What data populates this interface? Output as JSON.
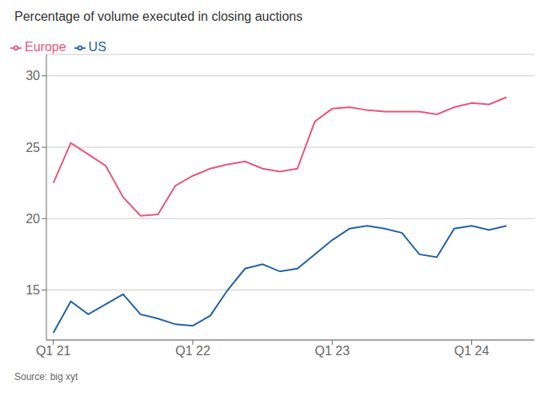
{
  "chart_data": {
    "type": "line",
    "title": "Percentage of volume executed in closing auctions",
    "annotations": [
      "Source: big xyt"
    ],
    "x": [
      0,
      0.5,
      1,
      1.5,
      2,
      2.5,
      3,
      3.5,
      4,
      4.5,
      5,
      5.5,
      6,
      6.5,
      7,
      7.5,
      8,
      8.5,
      9,
      9.5,
      10,
      10.5,
      11,
      11.5,
      12,
      12.5,
      13
    ],
    "series": [
      {
        "name": "US",
        "color": "#2060a8",
        "values": [
          12.0,
          14.2,
          13.3,
          14.0,
          14.7,
          13.3,
          13.0,
          12.6,
          12.5,
          13.2,
          15.0,
          16.5,
          16.8,
          16.3,
          16.5,
          17.5,
          18.5,
          19.3,
          19.5,
          19.3,
          19.0,
          17.5,
          17.3,
          19.3,
          19.5,
          19.2,
          19.5
        ]
      },
      {
        "name": "Europe",
        "color": "#e8547a",
        "values": [
          22.5,
          25.3,
          24.5,
          23.7,
          21.5,
          20.2,
          20.3,
          22.3,
          23.0,
          23.5,
          23.8,
          24.0,
          23.5,
          23.3,
          23.5,
          26.8,
          27.7,
          27.8,
          27.6,
          27.5,
          27.5,
          27.5,
          27.3,
          27.8,
          28.1,
          28.0,
          28.5
        ]
      }
    ],
    "xlim": [
      -0.2,
      13.8
    ],
    "xticks": [
      {
        "value": 0,
        "label": "Q1 21"
      },
      {
        "value": 4,
        "label": "Q1 22"
      },
      {
        "value": 8,
        "label": "Q1 23"
      },
      {
        "value": 12,
        "label": "Q1 24"
      }
    ],
    "ylim": [
      11.5,
      31.5
    ],
    "yticks": [
      15,
      20,
      25,
      30
    ],
    "grid": "y",
    "legend": "upper left"
  }
}
